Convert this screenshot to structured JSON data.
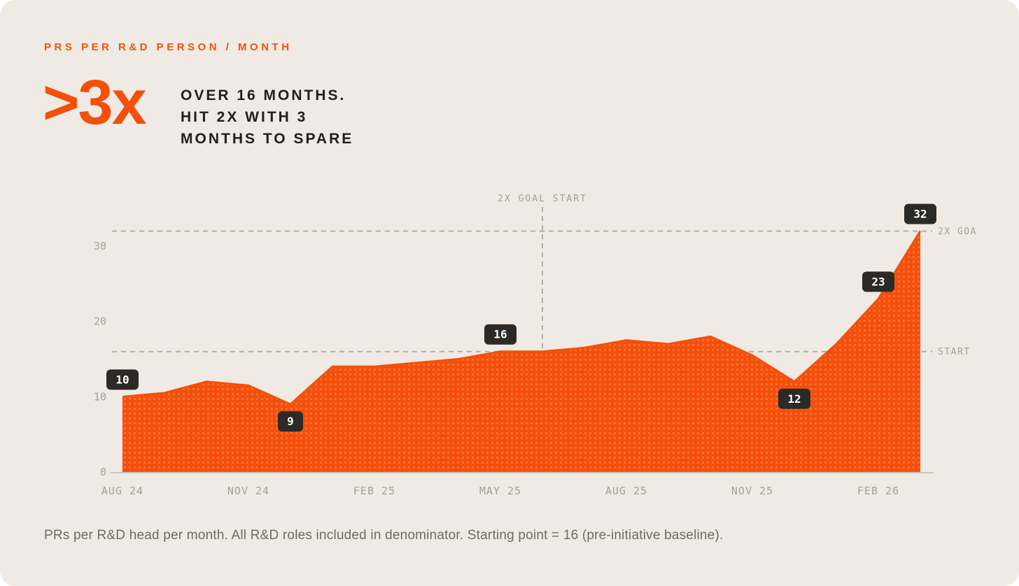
{
  "card": {
    "eyebrow": "PRS PER R&D PERSON / MONTH",
    "headline_value": ">3x",
    "headline_lines": [
      "OVER 16 MONTHS.",
      "HIT 2X WITH 3",
      "MONTHS TO SPARE"
    ],
    "caption": "PRs per R&D head per month. All R&D roles included in denominator. Starting point = 16 (pre-initiative baseline)."
  },
  "colors": {
    "background": "#efeae3",
    "accent": "#f4500b",
    "area_dot": "#ff8350",
    "badge_bg": "#2b2a27",
    "badge_text": "#ffffff",
    "axis_text": "#a49f96",
    "dashed_line": "#b3ada3",
    "axis_line": "#ccc6bb",
    "heading_text": "#21201d",
    "caption_text": "#6f6b63"
  },
  "chart_data": {
    "type": "area",
    "title": "PRS PER R&D PERSON / MONTH",
    "series_name": "PRs per R&D person per month",
    "x": [
      "AUG 24",
      "SEP 24",
      "OCT 24",
      "NOV 24",
      "DEC 24",
      "JAN 25",
      "FEB 25",
      "MAR 25",
      "APR 25",
      "MAY 25",
      "JUN 25",
      "JUL 25",
      "AUG 25",
      "SEP 25",
      "OCT 25",
      "NOV 25",
      "DEC 25",
      "JAN 26",
      "FEB 26",
      "MAR 26"
    ],
    "values": [
      10,
      10.5,
      12,
      11.5,
      9,
      14,
      14,
      14.5,
      15,
      16,
      16,
      16.5,
      17.5,
      17,
      18,
      15.5,
      12,
      17,
      23,
      32
    ],
    "ylim": [
      0,
      33
    ],
    "y_ticks": [
      0,
      10,
      20,
      30
    ],
    "x_tick_indices": [
      0,
      3,
      6,
      9,
      12,
      15,
      18
    ],
    "x_tick_labels": [
      "AUG 24",
      "NOV 24",
      "FEB 25",
      "MAY 25",
      "AUG 25",
      "NOV 25",
      "FEB 26"
    ],
    "point_labels": [
      {
        "index": 0,
        "value": 10,
        "position": "above"
      },
      {
        "index": 4,
        "value": 9,
        "position": "below"
      },
      {
        "index": 9,
        "value": 16,
        "position": "above"
      },
      {
        "index": 16,
        "value": 12,
        "position": "below"
      },
      {
        "index": 18,
        "value": 23,
        "position": "above"
      },
      {
        "index": 19,
        "value": 32,
        "position": "above"
      }
    ],
    "ref_lines_horizontal": [
      {
        "value": 32,
        "label": "2X GOA"
      },
      {
        "value": 16,
        "label": "START"
      }
    ],
    "ref_line_vertical": {
      "index": 10,
      "label": "2X GOAL START"
    },
    "grid": false,
    "legend": "none"
  }
}
